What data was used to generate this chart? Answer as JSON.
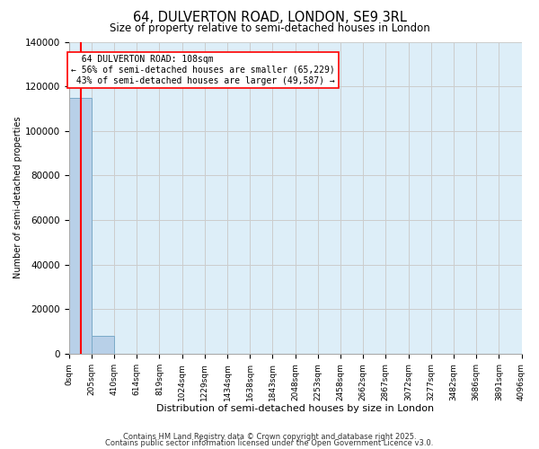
{
  "title": "64, DULVERTON ROAD, LONDON, SE9 3RL",
  "subtitle": "Size of property relative to semi-detached houses in London",
  "xlabel": "Distribution of semi-detached houses by size in London",
  "ylabel": "Number of semi-detached properties",
  "bar_color": "#b8d0e8",
  "bar_edge_color": "#7aaac8",
  "grid_color": "#cccccc",
  "background_color": "#ddeef8",
  "subject_size": 108,
  "subject_label": "64 DULVERTON ROAD: 108sqm",
  "pct_smaller": 56,
  "n_smaller": 65229,
  "pct_larger": 43,
  "n_larger": 49587,
  "annotation_edge_color": "red",
  "vline_color": "red",
  "bins": [
    0,
    205,
    410,
    614,
    819,
    1024,
    1229,
    1434,
    1638,
    1843,
    2048,
    2253,
    2458,
    2662,
    2867,
    3072,
    3277,
    3482,
    3686,
    3891,
    4096
  ],
  "counts": [
    114816,
    8000,
    0,
    0,
    0,
    0,
    0,
    0,
    0,
    0,
    0,
    0,
    0,
    0,
    0,
    0,
    0,
    0,
    0,
    0
  ],
  "ylim": [
    0,
    140000
  ],
  "yticks": [
    0,
    20000,
    40000,
    60000,
    80000,
    100000,
    120000,
    140000
  ],
  "footer1": "Contains HM Land Registry data © Crown copyright and database right 2025.",
  "footer2": "Contains public sector information licensed under the Open Government Licence v3.0."
}
